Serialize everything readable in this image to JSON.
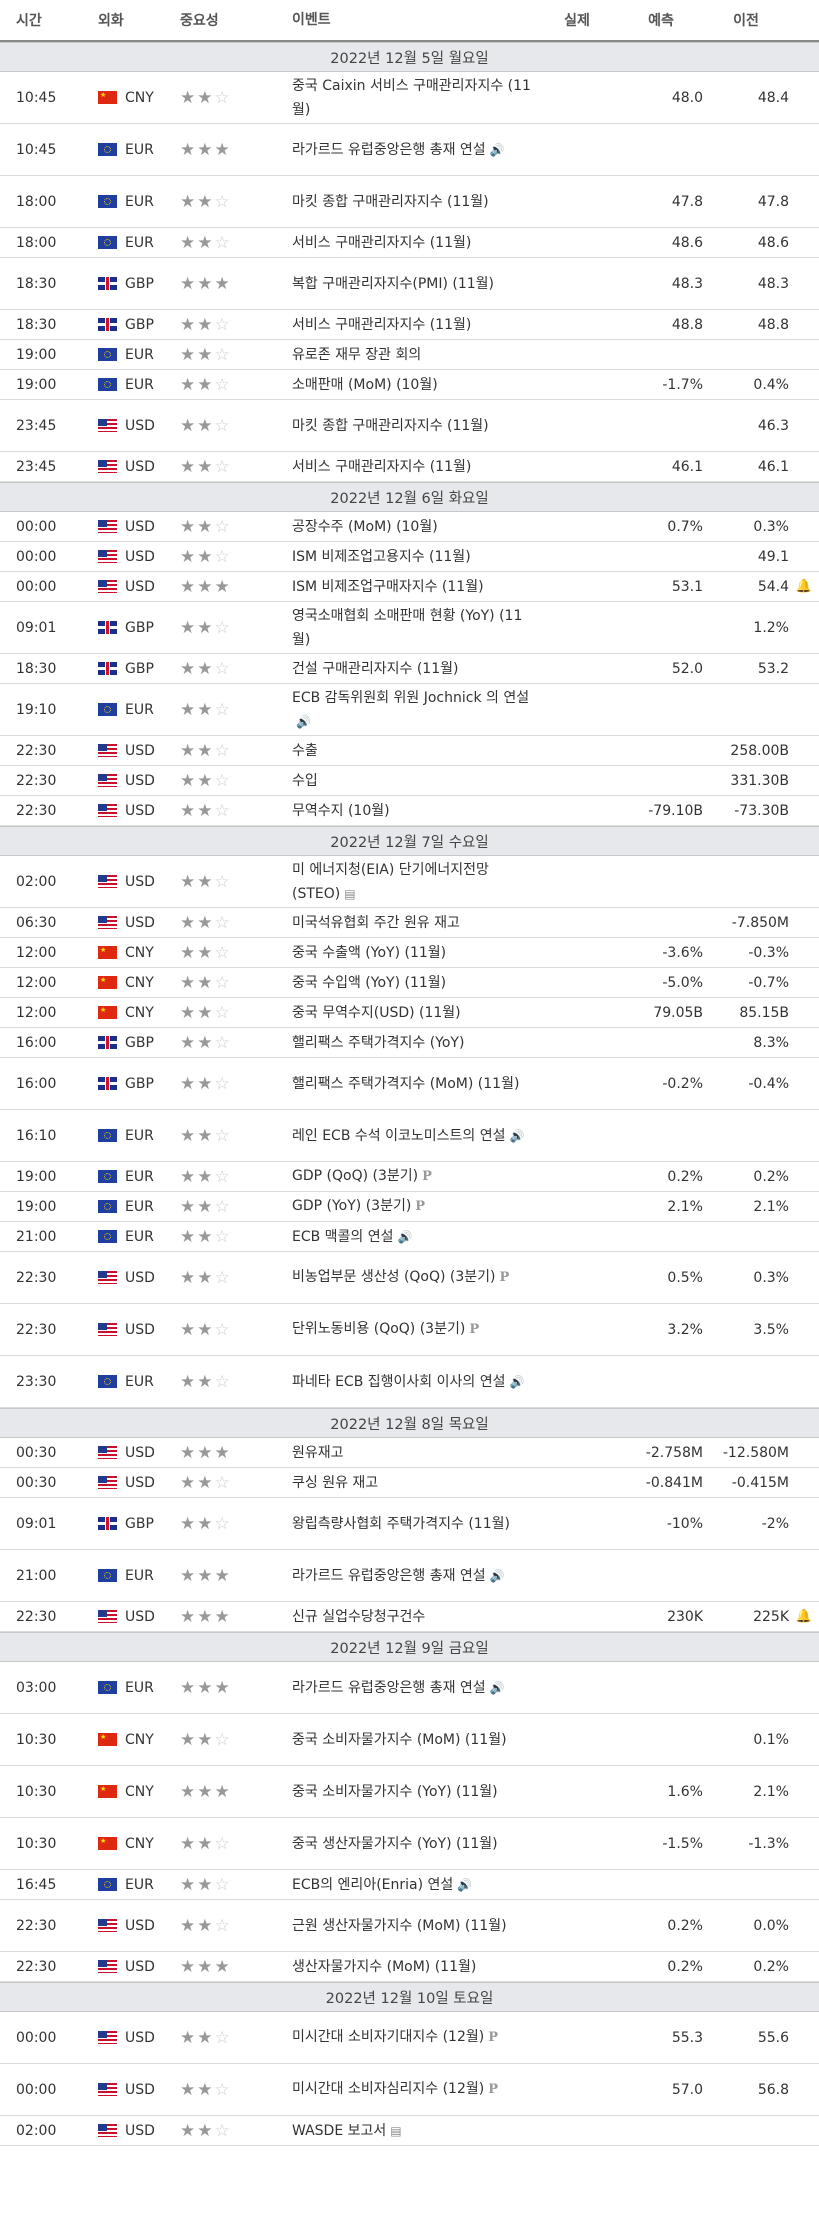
{
  "header": {
    "time": "시간",
    "currency": "외화",
    "importance": "중요성",
    "event": "이벤트",
    "actual": "실제",
    "forecast": "예측",
    "previous": "이전"
  },
  "days": [
    {
      "date": "2022년 12월 5일 월요일",
      "rows": [
        {
          "time": "10:45",
          "cur": "CNY",
          "flag": "cn",
          "imp": 2,
          "event": "중국 Caixin 서비스 구매관리자지수 (11월)",
          "icon": "",
          "actual": "",
          "forecast": "48.0",
          "previous": "48.4",
          "bell": false,
          "lines": 2
        },
        {
          "time": "10:45",
          "cur": "EUR",
          "flag": "eu",
          "imp": 3,
          "event": "라가르드 유럽중앙은행 총재 연설",
          "icon": "speaker-icon",
          "actual": "",
          "forecast": "",
          "previous": "",
          "bell": false,
          "lines": 2
        },
        {
          "time": "18:00",
          "cur": "EUR",
          "flag": "eu",
          "imp": 2,
          "event": "마킷 종합 구매관리자지수 (11월)",
          "icon": "",
          "actual": "",
          "forecast": "47.8",
          "previous": "47.8",
          "bell": false,
          "lines": 2
        },
        {
          "time": "18:00",
          "cur": "EUR",
          "flag": "eu",
          "imp": 2,
          "event": "서비스 구매관리자지수 (11월)",
          "icon": "",
          "actual": "",
          "forecast": "48.6",
          "previous": "48.6",
          "bell": false,
          "lines": 1
        },
        {
          "time": "18:30",
          "cur": "GBP",
          "flag": "gb",
          "imp": 3,
          "event": "복합 구매관리자지수(PMI) (11월)",
          "icon": "",
          "actual": "",
          "forecast": "48.3",
          "previous": "48.3",
          "bell": false,
          "lines": 2
        },
        {
          "time": "18:30",
          "cur": "GBP",
          "flag": "gb",
          "imp": 2,
          "event": "서비스 구매관리자지수 (11월)",
          "icon": "",
          "actual": "",
          "forecast": "48.8",
          "previous": "48.8",
          "bell": false,
          "lines": 1
        },
        {
          "time": "19:00",
          "cur": "EUR",
          "flag": "eu",
          "imp": 2,
          "event": "유로존 재무 장관 회의",
          "icon": "",
          "actual": "",
          "forecast": "",
          "previous": "",
          "bell": false,
          "lines": 1
        },
        {
          "time": "19:00",
          "cur": "EUR",
          "flag": "eu",
          "imp": 2,
          "event": "소매판매 (MoM) (10월)",
          "icon": "",
          "actual": "",
          "forecast": "-1.7%",
          "previous": "0.4%",
          "bell": false,
          "lines": 1
        },
        {
          "time": "23:45",
          "cur": "USD",
          "flag": "us",
          "imp": 2,
          "event": "마킷 종합 구매관리자지수 (11월)",
          "icon": "",
          "actual": "",
          "forecast": "",
          "previous": "46.3",
          "bell": false,
          "lines": 2
        },
        {
          "time": "23:45",
          "cur": "USD",
          "flag": "us",
          "imp": 2,
          "event": "서비스 구매관리자지수 (11월)",
          "icon": "",
          "actual": "",
          "forecast": "46.1",
          "previous": "46.1",
          "bell": false,
          "lines": 1
        }
      ]
    },
    {
      "date": "2022년 12월 6일 화요일",
      "rows": [
        {
          "time": "00:00",
          "cur": "USD",
          "flag": "us",
          "imp": 2,
          "event": "공장수주 (MoM) (10월)",
          "icon": "",
          "actual": "",
          "forecast": "0.7%",
          "previous": "0.3%",
          "bell": false,
          "lines": 1
        },
        {
          "time": "00:00",
          "cur": "USD",
          "flag": "us",
          "imp": 2,
          "event": "ISM 비제조업고용지수 (11월)",
          "icon": "",
          "actual": "",
          "forecast": "",
          "previous": "49.1",
          "bell": false,
          "lines": 1
        },
        {
          "time": "00:00",
          "cur": "USD",
          "flag": "us",
          "imp": 3,
          "event": "ISM 비제조업구매자지수 (11월)",
          "icon": "",
          "actual": "",
          "forecast": "53.1",
          "previous": "54.4",
          "bell": true,
          "lines": 1
        },
        {
          "time": "09:01",
          "cur": "GBP",
          "flag": "gb",
          "imp": 2,
          "event": "영국소매협회 소매판매 현황 (YoY) (11월)",
          "icon": "",
          "actual": "",
          "forecast": "",
          "previous": "1.2%",
          "bell": false,
          "lines": 2
        },
        {
          "time": "18:30",
          "cur": "GBP",
          "flag": "gb",
          "imp": 2,
          "event": "건설 구매관리자지수 (11월)",
          "icon": "",
          "actual": "",
          "forecast": "52.0",
          "previous": "53.2",
          "bell": false,
          "lines": 1
        },
        {
          "time": "19:10",
          "cur": "EUR",
          "flag": "eu",
          "imp": 2,
          "event": "ECB 감독위원회 위원 Jochnick 의 연설",
          "icon": "speaker-icon",
          "actual": "",
          "forecast": "",
          "previous": "",
          "bell": false,
          "lines": 2
        },
        {
          "time": "22:30",
          "cur": "USD",
          "flag": "us",
          "imp": 2,
          "event": "수출",
          "icon": "",
          "actual": "",
          "forecast": "",
          "previous": "258.00B",
          "bell": false,
          "lines": 1
        },
        {
          "time": "22:30",
          "cur": "USD",
          "flag": "us",
          "imp": 2,
          "event": "수입",
          "icon": "",
          "actual": "",
          "forecast": "",
          "previous": "331.30B",
          "bell": false,
          "lines": 1
        },
        {
          "time": "22:30",
          "cur": "USD",
          "flag": "us",
          "imp": 2,
          "event": "무역수지 (10월)",
          "icon": "",
          "actual": "",
          "forecast": "-79.10B",
          "previous": "-73.30B",
          "bell": false,
          "lines": 1
        }
      ]
    },
    {
      "date": "2022년 12월 7일 수요일",
      "rows": [
        {
          "time": "02:00",
          "cur": "USD",
          "flag": "us",
          "imp": 2,
          "event": "미 에너지청(EIA) 단기에너지전망(STEO)",
          "icon": "doc-icon",
          "actual": "",
          "forecast": "",
          "previous": "",
          "bell": false,
          "lines": 2
        },
        {
          "time": "06:30",
          "cur": "USD",
          "flag": "us",
          "imp": 2,
          "event": "미국석유협회 주간 원유 재고",
          "icon": "",
          "actual": "",
          "forecast": "",
          "previous": "-7.850M",
          "bell": false,
          "lines": 1
        },
        {
          "time": "12:00",
          "cur": "CNY",
          "flag": "cn",
          "imp": 2,
          "event": "중국 수출액 (YoY) (11월)",
          "icon": "",
          "actual": "",
          "forecast": "-3.6%",
          "previous": "-0.3%",
          "bell": false,
          "lines": 1
        },
        {
          "time": "12:00",
          "cur": "CNY",
          "flag": "cn",
          "imp": 2,
          "event": "중국 수입액 (YoY) (11월)",
          "icon": "",
          "actual": "",
          "forecast": "-5.0%",
          "previous": "-0.7%",
          "bell": false,
          "lines": 1
        },
        {
          "time": "12:00",
          "cur": "CNY",
          "flag": "cn",
          "imp": 2,
          "event": "중국 무역수지(USD) (11월)",
          "icon": "",
          "actual": "",
          "forecast": "79.05B",
          "previous": "85.15B",
          "bell": false,
          "lines": 1
        },
        {
          "time": "16:00",
          "cur": "GBP",
          "flag": "gb",
          "imp": 2,
          "event": "핼리팩스 주택가격지수 (YoY)",
          "icon": "",
          "actual": "",
          "forecast": "",
          "previous": "8.3%",
          "bell": false,
          "lines": 1
        },
        {
          "time": "16:00",
          "cur": "GBP",
          "flag": "gb",
          "imp": 2,
          "event": "핼리팩스 주택가격지수 (MoM) (11월)",
          "icon": "",
          "actual": "",
          "forecast": "-0.2%",
          "previous": "-0.4%",
          "bell": false,
          "lines": 2
        },
        {
          "time": "16:10",
          "cur": "EUR",
          "flag": "eu",
          "imp": 2,
          "event": "레인 ECB 수석 이코노미스트의 연설",
          "icon": "speaker-icon",
          "actual": "",
          "forecast": "",
          "previous": "",
          "bell": false,
          "lines": 2
        },
        {
          "time": "19:00",
          "cur": "EUR",
          "flag": "eu",
          "imp": 2,
          "event": "GDP (QoQ) (3분기)",
          "icon": "preliminary-icon",
          "actual": "",
          "forecast": "0.2%",
          "previous": "0.2%",
          "bell": false,
          "lines": 1
        },
        {
          "time": "19:00",
          "cur": "EUR",
          "flag": "eu",
          "imp": 2,
          "event": "GDP (YoY) (3분기)",
          "icon": "preliminary-icon",
          "actual": "",
          "forecast": "2.1%",
          "previous": "2.1%",
          "bell": false,
          "lines": 1
        },
        {
          "time": "21:00",
          "cur": "EUR",
          "flag": "eu",
          "imp": 2,
          "event": "ECB 맥콜의 연설",
          "icon": "speaker-icon",
          "actual": "",
          "forecast": "",
          "previous": "",
          "bell": false,
          "lines": 1
        },
        {
          "time": "22:30",
          "cur": "USD",
          "flag": "us",
          "imp": 2,
          "event": "비농업부문 생산성 (QoQ) (3분기)",
          "icon": "preliminary-icon",
          "actual": "",
          "forecast": "0.5%",
          "previous": "0.3%",
          "bell": false,
          "lines": 2
        },
        {
          "time": "22:30",
          "cur": "USD",
          "flag": "us",
          "imp": 2,
          "event": "단위노동비용 (QoQ) (3분기)",
          "icon": "preliminary-icon",
          "actual": "",
          "forecast": "3.2%",
          "previous": "3.5%",
          "bell": false,
          "lines": 2
        },
        {
          "time": "23:30",
          "cur": "EUR",
          "flag": "eu",
          "imp": 2,
          "event": "파네타 ECB 집행이사회 이사의 연설",
          "icon": "speaker-icon",
          "actual": "",
          "forecast": "",
          "previous": "",
          "bell": false,
          "lines": 2
        }
      ]
    },
    {
      "date": "2022년 12월 8일 목요일",
      "rows": [
        {
          "time": "00:30",
          "cur": "USD",
          "flag": "us",
          "imp": 3,
          "event": "원유재고",
          "icon": "",
          "actual": "",
          "forecast": "-2.758M",
          "previous": "-12.580M",
          "bell": false,
          "lines": 1
        },
        {
          "time": "00:30",
          "cur": "USD",
          "flag": "us",
          "imp": 2,
          "event": "쿠싱 원유 재고",
          "icon": "",
          "actual": "",
          "forecast": "-0.841M",
          "previous": "-0.415M",
          "bell": false,
          "lines": 1
        },
        {
          "time": "09:01",
          "cur": "GBP",
          "flag": "gb",
          "imp": 2,
          "event": "왕립측량사협회 주택가격지수 (11월)",
          "icon": "",
          "actual": "",
          "forecast": "-10%",
          "previous": "-2%",
          "bell": false,
          "lines": 2
        },
        {
          "time": "21:00",
          "cur": "EUR",
          "flag": "eu",
          "imp": 3,
          "event": "라가르드 유럽중앙은행 총재 연설",
          "icon": "speaker-icon",
          "actual": "",
          "forecast": "",
          "previous": "",
          "bell": false,
          "lines": 2
        },
        {
          "time": "22:30",
          "cur": "USD",
          "flag": "us",
          "imp": 3,
          "event": "신규 실업수당청구건수",
          "icon": "",
          "actual": "",
          "forecast": "230K",
          "previous": "225K",
          "bell": true,
          "lines": 1
        }
      ]
    },
    {
      "date": "2022년 12월 9일 금요일",
      "rows": [
        {
          "time": "03:00",
          "cur": "EUR",
          "flag": "eu",
          "imp": 3,
          "event": "라가르드 유럽중앙은행 총재 연설",
          "icon": "speaker-icon",
          "actual": "",
          "forecast": "",
          "previous": "",
          "bell": false,
          "lines": 2
        },
        {
          "time": "10:30",
          "cur": "CNY",
          "flag": "cn",
          "imp": 2,
          "event": "중국 소비자물가지수 (MoM) (11월)",
          "icon": "",
          "actual": "",
          "forecast": "",
          "previous": "0.1%",
          "bell": false,
          "lines": 2
        },
        {
          "time": "10:30",
          "cur": "CNY",
          "flag": "cn",
          "imp": 3,
          "event": "중국 소비자물가지수 (YoY) (11월)",
          "icon": "",
          "actual": "",
          "forecast": "1.6%",
          "previous": "2.1%",
          "bell": false,
          "lines": 2
        },
        {
          "time": "10:30",
          "cur": "CNY",
          "flag": "cn",
          "imp": 2,
          "event": "중국 생산자물가지수 (YoY) (11월)",
          "icon": "",
          "actual": "",
          "forecast": "-1.5%",
          "previous": "-1.3%",
          "bell": false,
          "lines": 2
        },
        {
          "time": "16:45",
          "cur": "EUR",
          "flag": "eu",
          "imp": 2,
          "event": "ECB의 엔리아(Enria) 연설",
          "icon": "speaker-icon",
          "actual": "",
          "forecast": "",
          "previous": "",
          "bell": false,
          "lines": 1
        },
        {
          "time": "22:30",
          "cur": "USD",
          "flag": "us",
          "imp": 2,
          "event": "근원 생산자물가지수 (MoM) (11월)",
          "icon": "",
          "actual": "",
          "forecast": "0.2%",
          "previous": "0.0%",
          "bell": false,
          "lines": 2
        },
        {
          "time": "22:30",
          "cur": "USD",
          "flag": "us",
          "imp": 3,
          "event": "생산자물가지수 (MoM) (11월)",
          "icon": "",
          "actual": "",
          "forecast": "0.2%",
          "previous": "0.2%",
          "bell": false,
          "lines": 1
        }
      ]
    },
    {
      "date": "2022년 12월 10일 토요일",
      "rows": [
        {
          "time": "00:00",
          "cur": "USD",
          "flag": "us",
          "imp": 2,
          "event": "미시간대 소비자기대지수 (12월)",
          "icon": "preliminary-icon",
          "actual": "",
          "forecast": "55.3",
          "previous": "55.6",
          "bell": false,
          "lines": 2
        },
        {
          "time": "00:00",
          "cur": "USD",
          "flag": "us",
          "imp": 2,
          "event": "미시간대 소비자심리지수 (12월)",
          "icon": "preliminary-icon",
          "actual": "",
          "forecast": "57.0",
          "previous": "56.8",
          "bell": false,
          "lines": 2
        },
        {
          "time": "02:00",
          "cur": "USD",
          "flag": "us",
          "imp": 2,
          "event": "WASDE 보고서",
          "icon": "doc-icon",
          "actual": "",
          "forecast": "",
          "previous": "",
          "bell": false,
          "lines": 1
        }
      ]
    }
  ]
}
